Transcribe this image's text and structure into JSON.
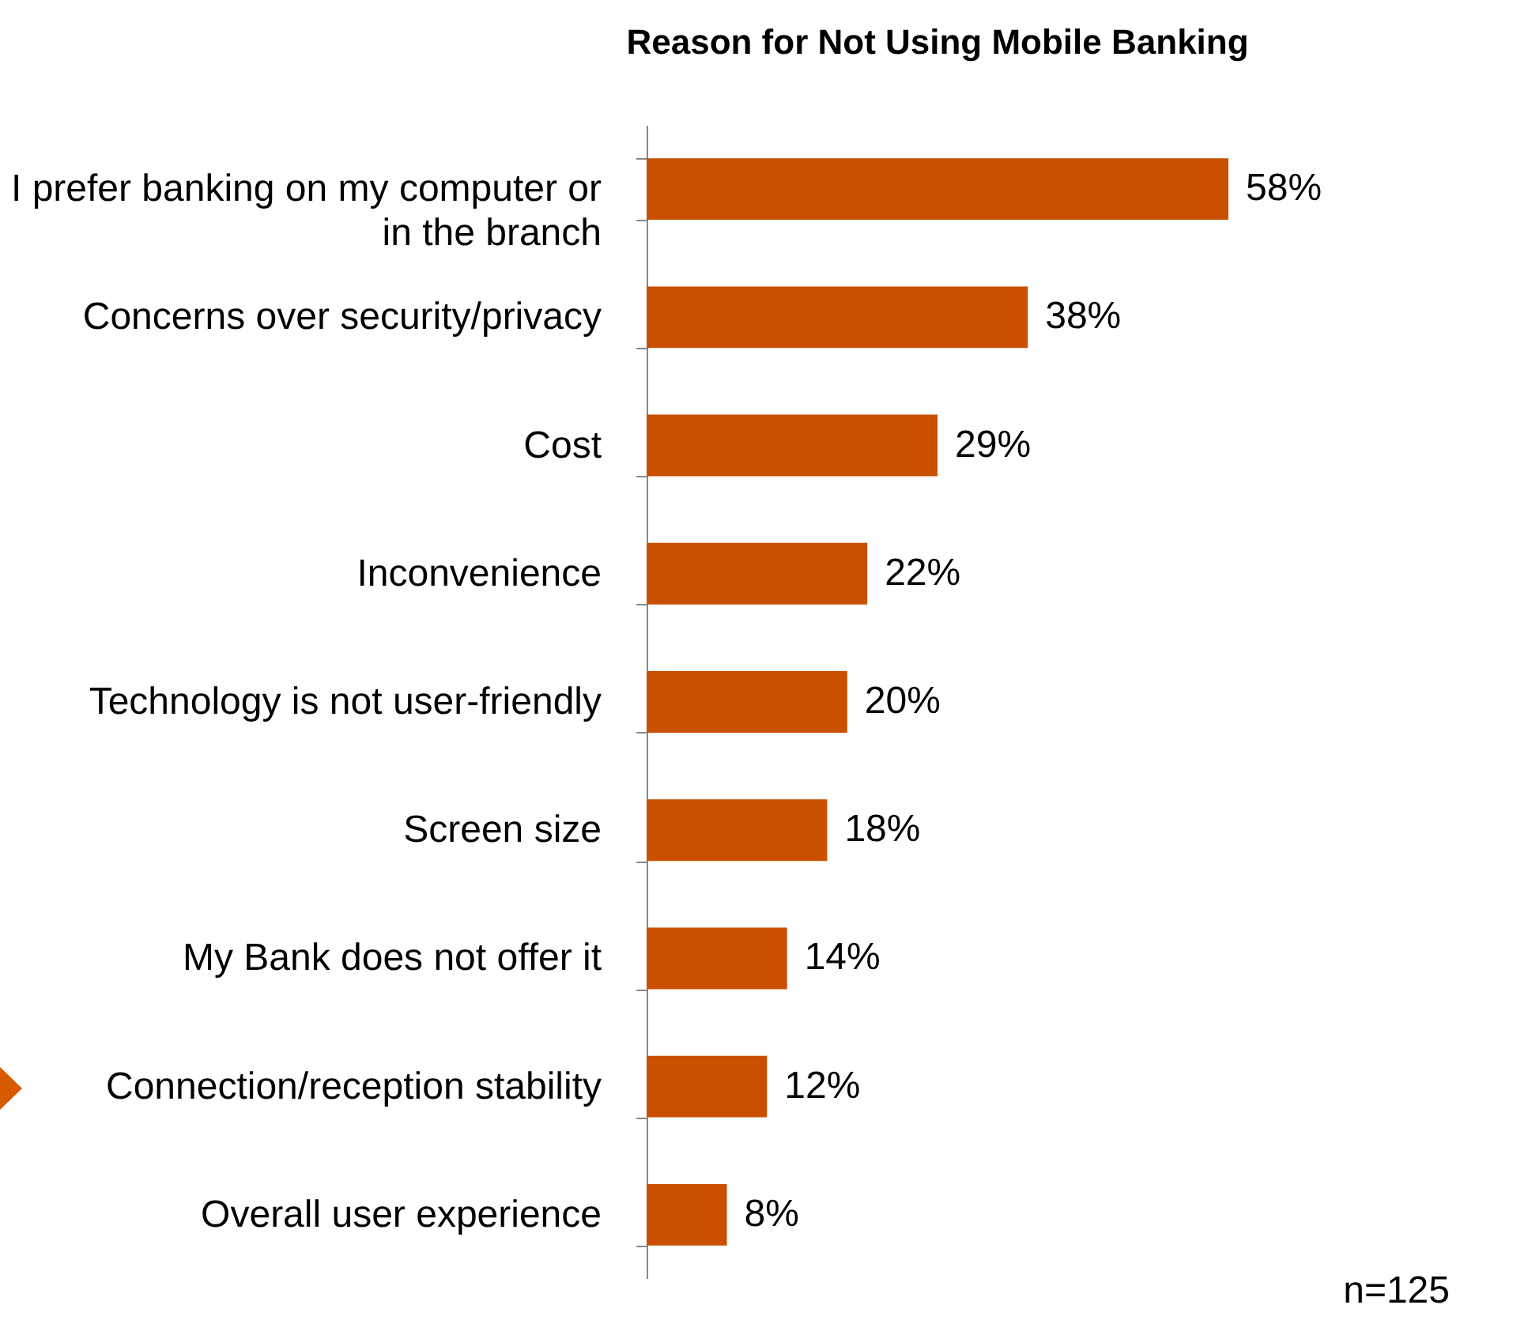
{
  "chart_data": {
    "type": "bar",
    "orientation": "horizontal",
    "title": "Reason for Not Using Mobile Banking",
    "categories": [
      "I prefer banking on my computer or in the branch",
      "Concerns over security/privacy",
      "Cost",
      "Inconvenience",
      "Technology is not user-friendly",
      "Screen size",
      "My Bank does not offer it",
      "Connection/reception stability",
      "Overall user experience"
    ],
    "values": [
      58,
      38,
      29,
      22,
      20,
      18,
      14,
      12,
      8
    ],
    "value_labels": [
      "58%",
      "38%",
      "29%",
      "22%",
      "20%",
      "18%",
      "14%",
      "12%",
      "8%"
    ],
    "color": "#c85000",
    "grid": false,
    "tick_labels": "y",
    "annotations": [
      "n=125"
    ]
  }
}
